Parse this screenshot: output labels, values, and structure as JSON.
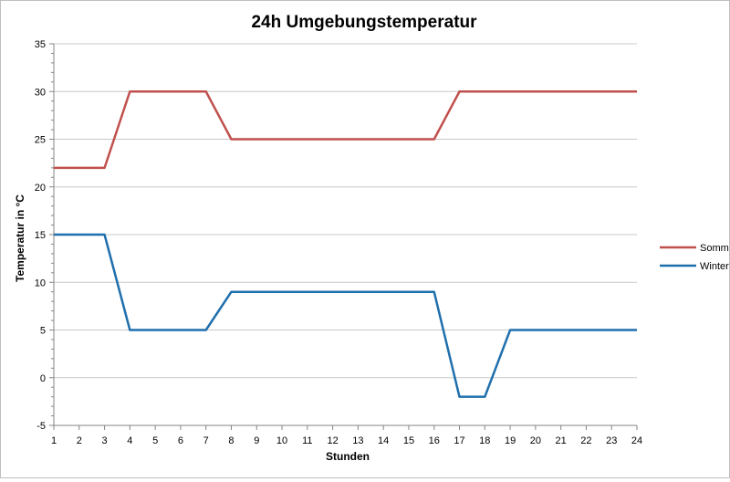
{
  "chart_data": {
    "type": "line",
    "title": "24h Umgebungstemperatur",
    "xlabel": "Stunden",
    "ylabel": "Temperatur in °C",
    "x": [
      1,
      2,
      3,
      4,
      5,
      6,
      7,
      8,
      9,
      10,
      11,
      12,
      13,
      14,
      15,
      16,
      17,
      18,
      19,
      20,
      21,
      22,
      23,
      24
    ],
    "xlim": [
      1,
      24
    ],
    "ylim": [
      -5,
      35
    ],
    "yticks": [
      -5,
      0,
      5,
      10,
      15,
      20,
      25,
      30,
      35
    ],
    "grid": true,
    "legend_position": "right",
    "series": [
      {
        "name": "Sommer",
        "color": "#c0504d",
        "values": [
          22,
          22,
          22,
          30,
          30,
          30,
          30,
          25,
          25,
          25,
          25,
          25,
          25,
          25,
          25,
          25,
          30,
          30,
          30,
          30,
          30,
          30,
          30,
          30
        ]
      },
      {
        "name": "Winter",
        "color": "#1f6fad",
        "values": [
          15,
          15,
          15,
          5,
          5,
          5,
          5,
          9,
          9,
          9,
          9,
          9,
          9,
          9,
          9,
          9,
          -2,
          -2,
          5,
          5,
          5,
          5,
          5,
          5
        ]
      }
    ]
  }
}
